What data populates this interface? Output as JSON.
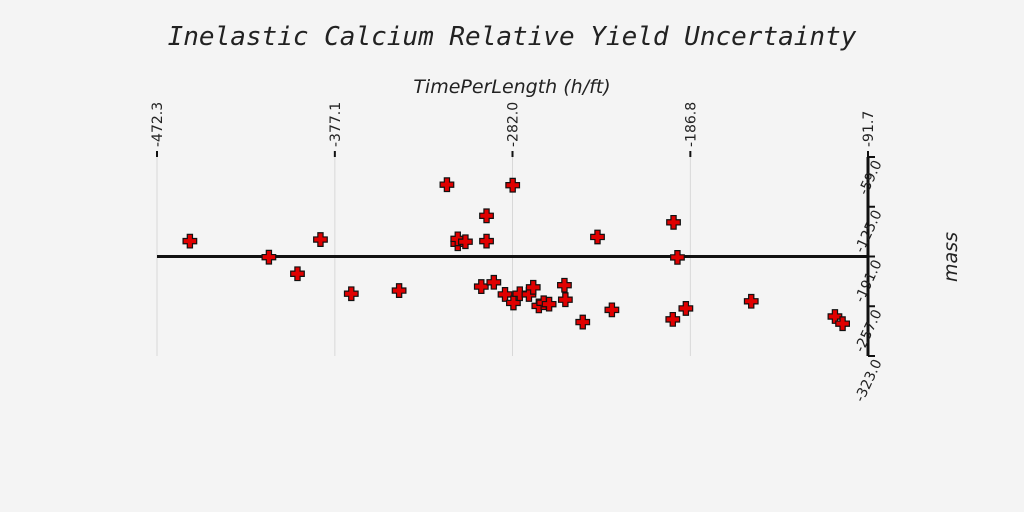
{
  "chart_data": {
    "type": "scatter",
    "title": "Inelastic Calcium Relative Yield Uncertainty",
    "xlabel": "TimePerLength (h/ft)",
    "ylabel": "mass",
    "x_ticks": [
      "-472.3",
      "-377.1",
      "-282.0",
      "-186.8",
      "-91.7"
    ],
    "y_ticks": [
      "-59.0",
      "-125.0",
      "-191.0",
      "-257.0",
      "-323.0"
    ],
    "xlim": [
      -472.3,
      -91.7
    ],
    "ylim": [
      -323.0,
      -59.0
    ],
    "y_reference_line": -191.0,
    "grid": "vertical-only",
    "marker": "cross",
    "marker_color": "#e00000",
    "x": [
      -454.7,
      -412.4,
      -397.1,
      -384.8,
      -368.3,
      -342.7,
      -317.1,
      -311.3,
      -311.3,
      -307.2,
      -298.7,
      -295.9,
      -295.9,
      -292.0,
      -286.0,
      -281.5,
      -281.9,
      -278.1,
      -273.2,
      -270.9,
      -267.9,
      -265.3,
      -262.4,
      -254.2,
      -253.7,
      -244.4,
      -236.5,
      -228.8,
      -195.8,
      -196.2,
      -193.7,
      -189.2,
      -154.2,
      -109.4,
      -105.3
    ],
    "y": [
      -170.6,
      -191.9,
      -213.9,
      -168.5,
      -240.4,
      -236.2,
      -95.7,
      -174.1,
      -167.6,
      -171.4,
      -230.9,
      -137.0,
      -170.6,
      -225.2,
      -241.3,
      -252.6,
      -96.4,
      -240.4,
      -241.3,
      -231.9,
      -256.5,
      -252.4,
      -254.2,
      -229.1,
      -248.3,
      -278.0,
      -165.1,
      -261.8,
      -145.7,
      -274.4,
      -192.2,
      -259.9,
      -250.4,
      -270.6,
      -280.1
    ]
  }
}
